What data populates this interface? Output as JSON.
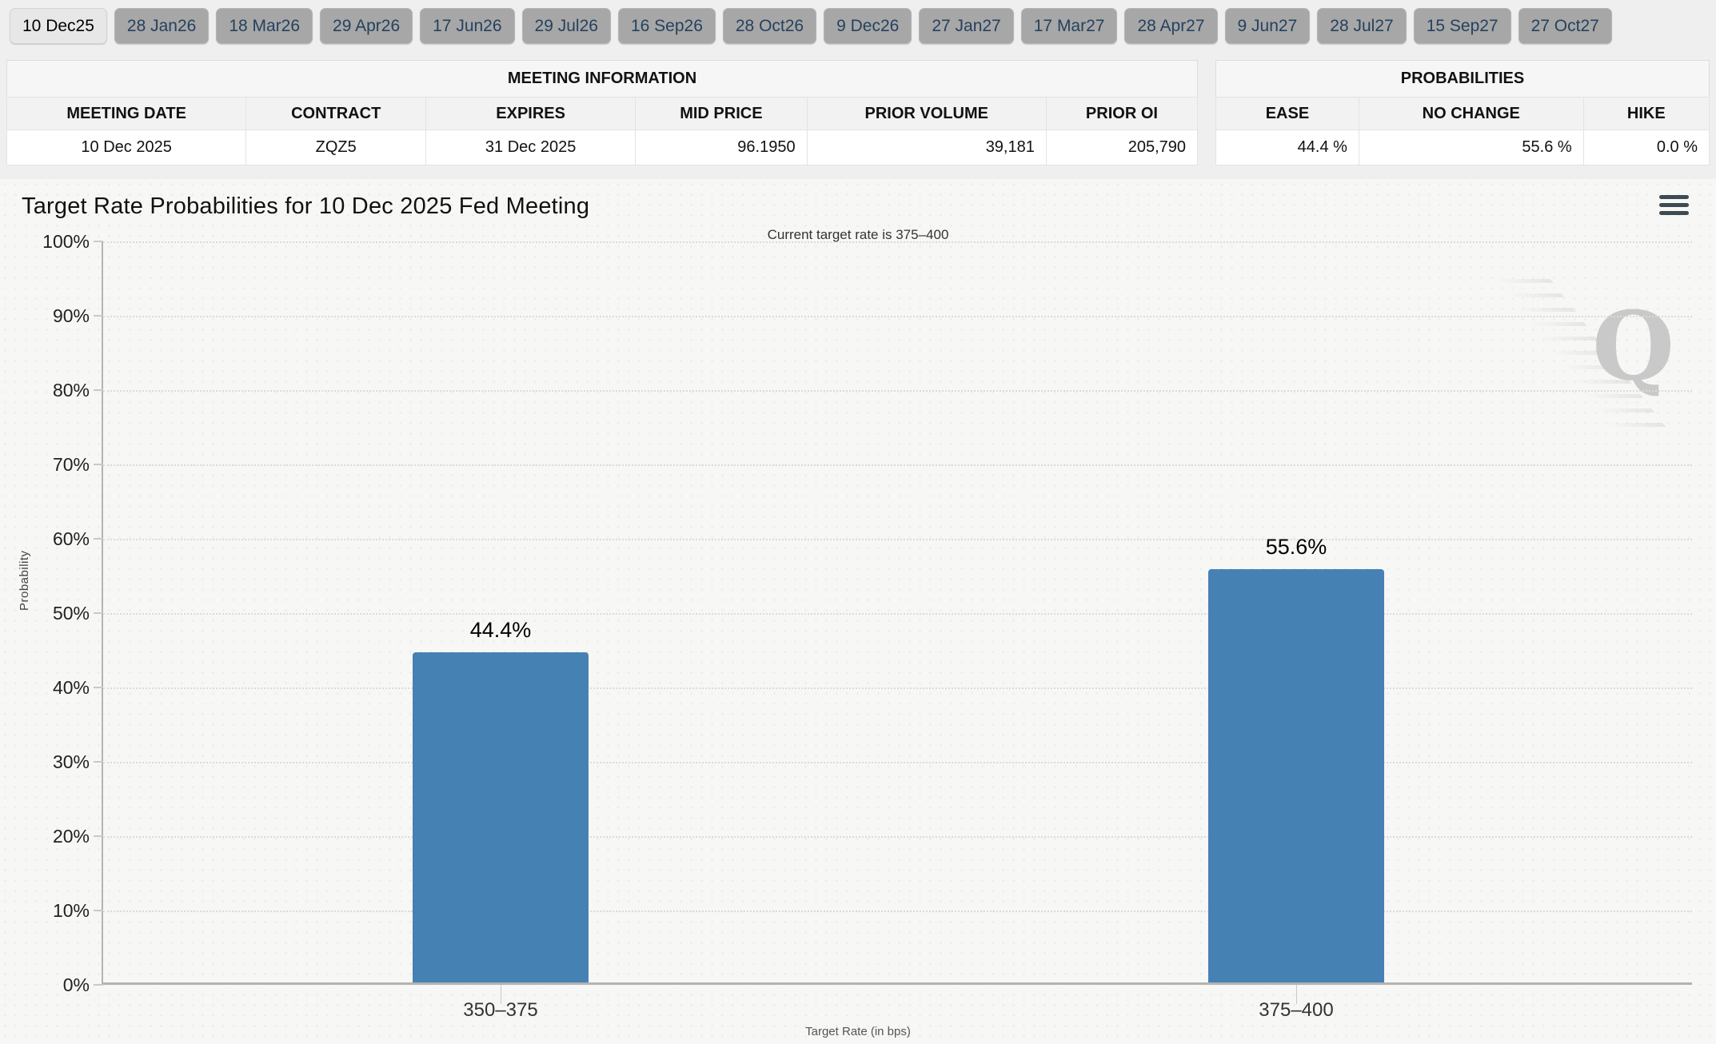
{
  "tabs": {
    "items": [
      "10 Dec25",
      "28 Jan26",
      "18 Mar26",
      "29 Apr26",
      "17 Jun26",
      "29 Jul26",
      "16 Sep26",
      "28 Oct26",
      "9 Dec26",
      "27 Jan27",
      "17 Mar27",
      "28 Apr27",
      "9 Jun27",
      "28 Jul27",
      "15 Sep27",
      "27 Oct27"
    ],
    "active": "10 Dec25"
  },
  "meeting_info_table": {
    "section_title": "MEETING INFORMATION",
    "columns": [
      "MEETING DATE",
      "CONTRACT",
      "EXPIRES",
      "MID PRICE",
      "PRIOR VOLUME",
      "PRIOR OI"
    ],
    "row": {
      "meeting_date": "10 Dec 2025",
      "contract": "ZQZ5",
      "expires": "31 Dec 2025",
      "mid_price": "96.1950",
      "prior_volume": "39,181",
      "prior_oi": "205,790"
    }
  },
  "probabilities_table": {
    "section_title": "PROBABILITIES",
    "columns": [
      "EASE",
      "NO CHANGE",
      "HIKE"
    ],
    "row": {
      "ease": "44.4 %",
      "no_change": "55.6 %",
      "hike": "0.0 %"
    }
  },
  "chart": {
    "title": "Target Rate Probabilities for 10 Dec 2025 Fed Meeting",
    "subtitle": "Current target rate is 375–400",
    "menu_icon": "hamburger-menu-icon",
    "watermark": "Q"
  },
  "chart_data": {
    "type": "bar",
    "title": "Target Rate Probabilities for 10 Dec 2025 Fed Meeting",
    "subtitle": "Current target rate is 375–400",
    "categories": [
      "350–375",
      "375–400"
    ],
    "values": [
      44.4,
      55.6
    ],
    "value_labels": [
      "44.4%",
      "55.6%"
    ],
    "xlabel": "Target Rate (in bps)",
    "ylabel": "Probability",
    "ylim": [
      0,
      100
    ],
    "ytick_step": 10,
    "yticks": [
      "100%",
      "90%",
      "80%",
      "70%",
      "60%",
      "50%",
      "40%",
      "30%",
      "20%",
      "10%",
      "0%"
    ],
    "grid": true,
    "legend": "none",
    "bar_color": "#4681b4"
  },
  "colors": {
    "bar": "#4681b4",
    "tab_active_bg": "#e7e7e7",
    "tab_inactive_bg": "#a7a7a7",
    "tab_text": "#26415e",
    "axis": "#b3b3b3"
  }
}
